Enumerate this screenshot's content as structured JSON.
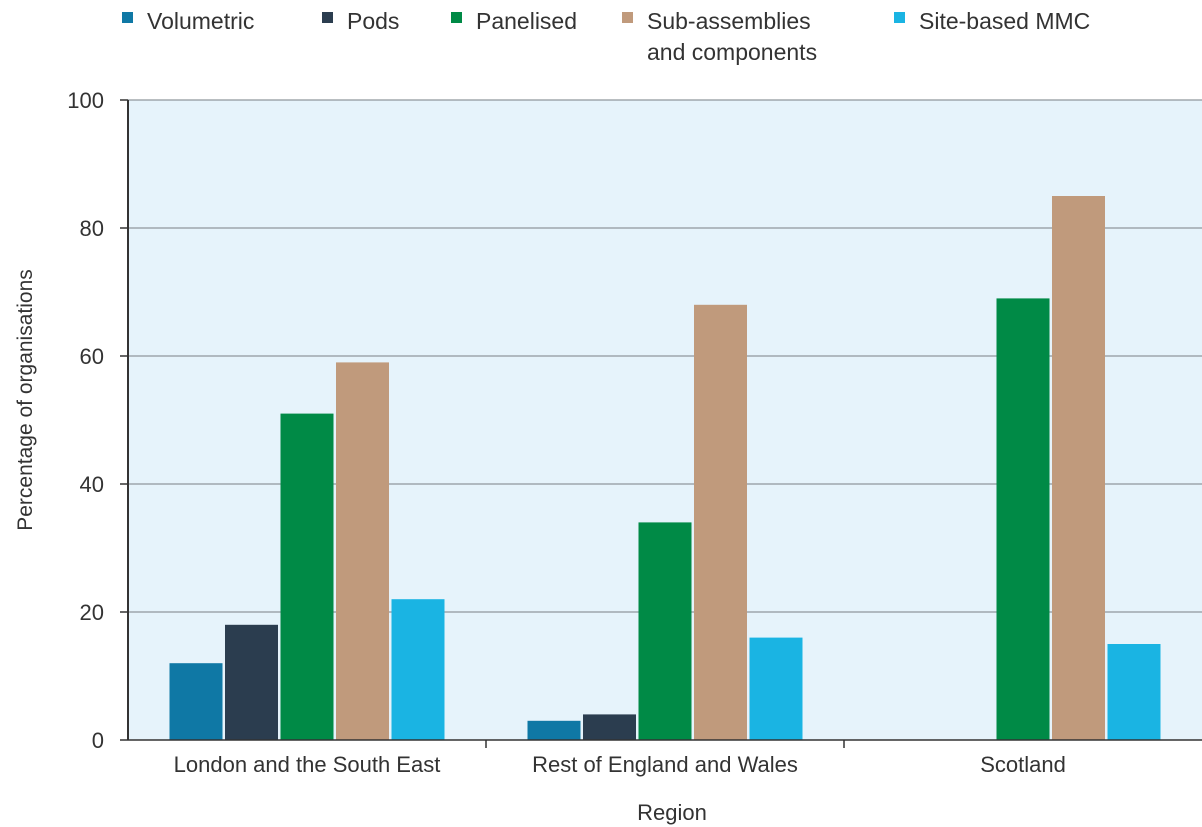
{
  "chart_data": {
    "type": "bar",
    "categories": [
      "London and the South East",
      "Rest of England and Wales",
      "Scotland"
    ],
    "series": [
      {
        "name": "Volumetric",
        "color": "#0f78a5",
        "values": [
          12,
          3,
          0
        ]
      },
      {
        "name": "Pods",
        "color": "#2b3d4f",
        "values": [
          18,
          4,
          0
        ]
      },
      {
        "name": "Panelised",
        "color": "#008a46",
        "values": [
          51,
          34,
          69
        ]
      },
      {
        "name": "Sub-assemblies\nand components",
        "color": "#c09a7c",
        "values": [
          59,
          68,
          85
        ]
      },
      {
        "name": "Site-based MMC",
        "color": "#1ab4e3",
        "values": [
          22,
          16,
          15
        ]
      }
    ],
    "xlabel": "Region",
    "ylabel": "Percentage of organisations",
    "ylim": [
      0,
      100
    ],
    "yticks": [
      0,
      20,
      40,
      60,
      80,
      100
    ],
    "grid": true,
    "legend": "top",
    "plot_background": "#e6f3fb"
  }
}
